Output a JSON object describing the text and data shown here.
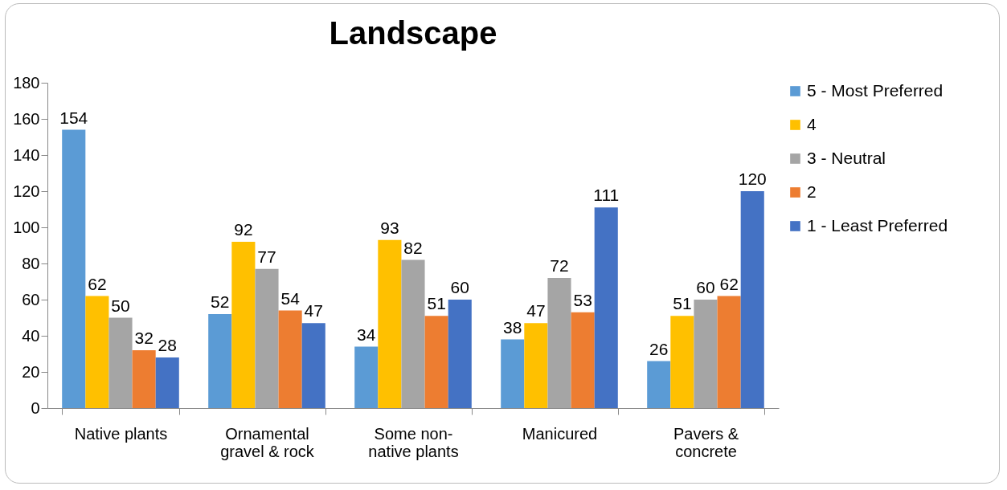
{
  "chart_data": {
    "type": "bar",
    "title": "Landscape",
    "categories": [
      "Native plants",
      "Ornamental gravel & rock",
      "Some non-native plants",
      "Manicured",
      "Pavers & concrete"
    ],
    "series": [
      {
        "name": "5 - Most Preferred",
        "color": "#5b9bd5",
        "values": [
          154,
          52,
          34,
          38,
          26
        ]
      },
      {
        "name": "4",
        "color": "#ffc000",
        "values": [
          62,
          92,
          93,
          47,
          51
        ]
      },
      {
        "name": "3 - Neutral",
        "color": "#a5a5a5",
        "values": [
          50,
          77,
          82,
          72,
          60
        ]
      },
      {
        "name": "2",
        "color": "#ed7d31",
        "values": [
          32,
          54,
          51,
          53,
          62
        ]
      },
      {
        "name": "1 - Least Preferred",
        "color": "#4472c4",
        "values": [
          28,
          47,
          60,
          111,
          120
        ]
      }
    ],
    "ylim": [
      0,
      180
    ],
    "yticks": [
      0,
      20,
      40,
      60,
      80,
      100,
      120,
      140,
      160,
      180
    ],
    "grid": false,
    "legend": "right",
    "data_labels": true
  }
}
